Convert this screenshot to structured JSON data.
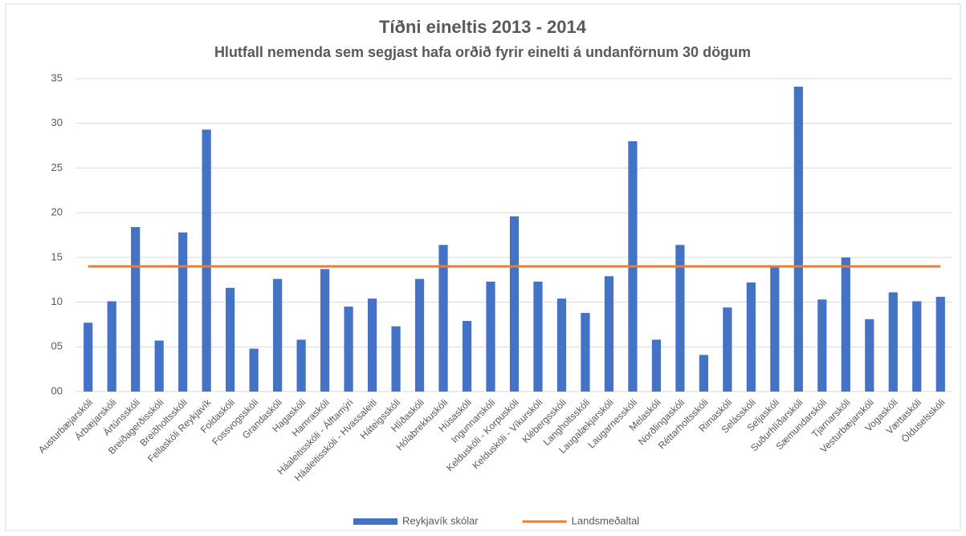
{
  "chart_data": {
    "type": "bar",
    "title": "Tíðni eineltis 2013 - 2014",
    "subtitle": "Hlutfall nemenda sem segjast hafa orðið fyrir einelti á undanförnum 30 dögum",
    "categories": [
      "Austurbæjarskóli",
      "Árbæjarskóli",
      "Ártúnsskóli",
      "Breiðagerðisskóli",
      "Breiðholtsskóli",
      "Fellaskóli Reykjavík",
      "Foldaskóli",
      "Fossvogsskóli",
      "Grandaskóli",
      "Hagaskóli",
      "Hamraskóli",
      "Háaleitisskóli - Álftamýri",
      "Háaleitisskóli - Hvassaleiti",
      "Háteigsskóli",
      "Hlíðaskóli",
      "Hólabrekkuskóli",
      "Húsaskóli",
      "Ingunnarskóli",
      "Kelduskóli - Korpuskóli",
      "Kelduskóli - Víkurskóli",
      "Klébergsskóli",
      "Langholtsskóli",
      "Laugalækjarskóli",
      "Laugarnesskóli",
      "Melaskóli",
      "Norðlingaskóli",
      "Réttarholtsskóli",
      "Rimaskóli",
      "Selásskóli",
      "Seljaskóli",
      "Suðurhlíðarskóli",
      "Sæmundarskóli",
      "Tjarnarskóli",
      "Vesturbæjarskóli",
      "Vogaskóli",
      "Vættaskóli",
      "Ölduselsskóli"
    ],
    "series": [
      {
        "name": "Reykjavík skólar",
        "color": "#4472c4",
        "type": "bar",
        "values": [
          7.7,
          10.1,
          18.4,
          5.7,
          17.8,
          29.3,
          11.6,
          4.8,
          12.6,
          5.8,
          13.7,
          9.5,
          10.4,
          7.3,
          12.6,
          16.4,
          7.9,
          12.3,
          19.6,
          12.3,
          10.4,
          8.8,
          12.9,
          28.0,
          5.8,
          16.4,
          4.1,
          9.4,
          12.2,
          13.9,
          34.1,
          10.3,
          15.0,
          8.1,
          11.1,
          10.1,
          10.6
        ]
      },
      {
        "name": "Landsmeðaltal",
        "color": "#ed7d31",
        "type": "line",
        "values": [
          14,
          14,
          14,
          14,
          14,
          14,
          14,
          14,
          14,
          14,
          14,
          14,
          14,
          14,
          14,
          14,
          14,
          14,
          14,
          14,
          14,
          14,
          14,
          14,
          14,
          14,
          14,
          14,
          14,
          14,
          14,
          14,
          14,
          14,
          14,
          14,
          14
        ]
      }
    ],
    "ylim": [
      0,
      35
    ],
    "yticks": [
      {
        "value": 0,
        "label": "00"
      },
      {
        "value": 5,
        "label": "05"
      },
      10,
      15,
      20,
      25,
      30,
      35
    ],
    "grid": true,
    "legend": "bottom"
  }
}
